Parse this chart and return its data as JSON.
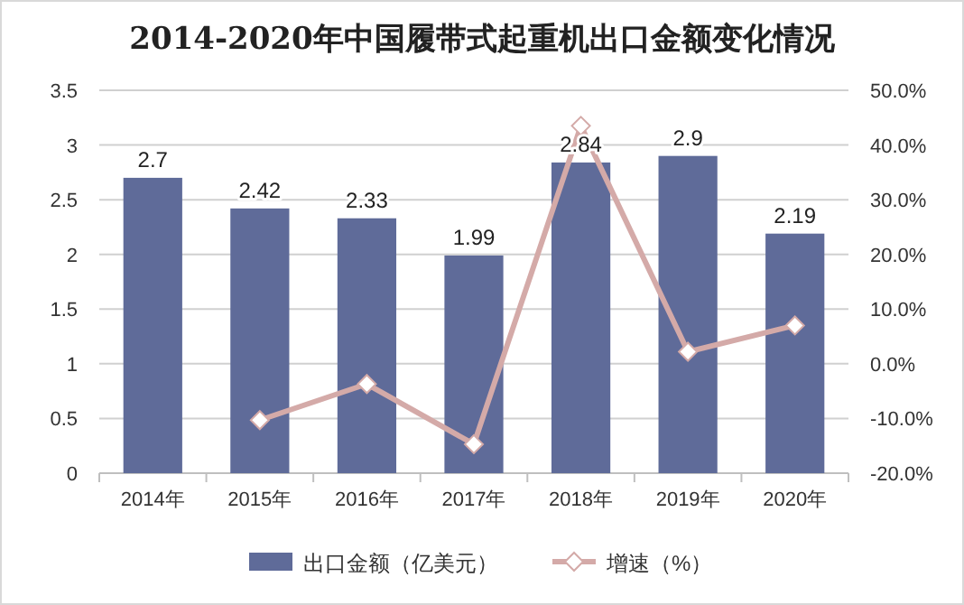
{
  "chart_data": {
    "type": "bar",
    "title": "2014-2020年中国履带式起重机出口金额变化情况",
    "categories": [
      "2014年",
      "2015年",
      "2016年",
      "2017年",
      "2018年",
      "2019年",
      "2020年"
    ],
    "series": [
      {
        "name": "出口金额（亿美元）",
        "color": "#5f6b99",
        "values": [
          2.7,
          2.42,
          2.33,
          1.99,
          2.84,
          2.9,
          2.19
        ],
        "value_labels": [
          "2.7",
          "2.42",
          "2.33",
          "1.99",
          "2.84",
          "2.9",
          "2.19"
        ]
      },
      {
        "name": "增速（%）",
        "type": "line",
        "axis": "y2",
        "color": "#d4aaa8",
        "marker": "diamond",
        "values": [
          null,
          -10.3,
          -3.7,
          -14.7,
          43.5,
          2.2,
          7.0
        ]
      }
    ],
    "ylim": [
      0,
      3.5
    ],
    "yticks": [
      0,
      0.5,
      1,
      1.5,
      2,
      2.5,
      3,
      3.5
    ],
    "y2lim": [
      -20,
      50
    ],
    "y2ticks": [
      {
        "value": -20,
        "label": "-20.0%"
      },
      {
        "value": -10,
        "label": "-10.0%"
      },
      {
        "value": 0,
        "label": "0.0%"
      },
      {
        "value": 10,
        "label": "10.0%"
      },
      {
        "value": 20,
        "label": "20.0%"
      },
      {
        "value": 30,
        "label": "30.0%"
      },
      {
        "value": 40,
        "label": "40.0%"
      },
      {
        "value": 50,
        "label": "50.0%"
      }
    ],
    "grid": "y",
    "legend": "bottom"
  }
}
